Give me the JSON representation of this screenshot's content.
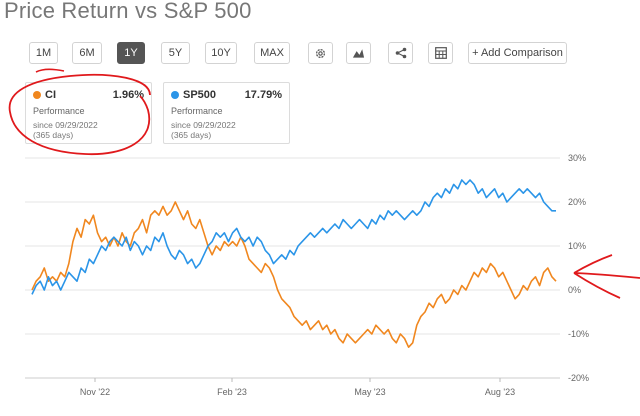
{
  "title": "Price Return vs S&P 500",
  "toolbar": {
    "ranges": [
      "1M",
      "6M",
      "1Y",
      "5Y",
      "10Y",
      "MAX"
    ],
    "active_range": "1Y",
    "icons": [
      "gear-icon",
      "mountain-chart-icon",
      "share-icon",
      "table-icon"
    ],
    "add_comparison": "+ Add Comparison"
  },
  "cards": [
    {
      "ticker": "CI",
      "value": "1.96%",
      "sub": "Performance",
      "since": "since 09/29/2022",
      "days": "(365 days)",
      "color": "#f0871f"
    },
    {
      "ticker": "SP500",
      "value": "17.79%",
      "sub": "Performance",
      "since": "since 09/29/2022",
      "days": "(365 days)",
      "color": "#2b95e8"
    }
  ],
  "chart_data": {
    "type": "line",
    "x_ticks": [
      "Nov '22",
      "Feb '23",
      "May '23",
      "Aug '23"
    ],
    "y_ticks": [
      "30%",
      "20%",
      "10%",
      "0%",
      "-10%",
      "-20%"
    ],
    "ylim": [
      -20,
      30
    ],
    "grid": "horizontal",
    "series": [
      {
        "name": "CI",
        "color": "#f0871f",
        "points": [
          [
            0,
            0
          ],
          [
            1,
            2
          ],
          [
            2,
            3
          ],
          [
            3,
            5
          ],
          [
            4,
            2
          ],
          [
            5,
            3
          ],
          [
            6,
            2
          ],
          [
            7,
            4
          ],
          [
            8,
            3
          ],
          [
            9,
            6
          ],
          [
            10,
            11
          ],
          [
            11,
            14
          ],
          [
            12,
            12
          ],
          [
            13,
            16
          ],
          [
            14,
            15
          ],
          [
            15,
            17
          ],
          [
            16,
            13
          ],
          [
            17,
            11
          ],
          [
            18,
            12
          ],
          [
            19,
            10
          ],
          [
            20,
            12
          ],
          [
            21,
            10
          ],
          [
            22,
            13
          ],
          [
            23,
            11
          ],
          [
            24,
            10
          ],
          [
            25,
            13
          ],
          [
            26,
            14
          ],
          [
            27,
            16
          ],
          [
            28,
            13
          ],
          [
            29,
            17
          ],
          [
            30,
            18
          ],
          [
            31,
            17
          ],
          [
            32,
            19
          ],
          [
            33,
            17
          ],
          [
            34,
            18
          ],
          [
            35,
            20
          ],
          [
            36,
            18
          ],
          [
            37,
            16
          ],
          [
            38,
            18
          ],
          [
            39,
            15
          ],
          [
            40,
            14
          ],
          [
            41,
            16
          ],
          [
            42,
            13
          ],
          [
            43,
            10
          ],
          [
            44,
            8
          ],
          [
            45,
            10
          ],
          [
            46,
            9
          ],
          [
            47,
            11
          ],
          [
            48,
            10
          ],
          [
            49,
            11
          ],
          [
            50,
            10
          ],
          [
            51,
            12
          ],
          [
            52,
            10
          ],
          [
            53,
            7
          ],
          [
            54,
            6
          ],
          [
            55,
            5
          ],
          [
            56,
            4
          ],
          [
            57,
            6
          ],
          [
            58,
            5
          ],
          [
            59,
            3
          ],
          [
            60,
            0
          ],
          [
            61,
            -2
          ],
          [
            62,
            -3
          ],
          [
            63,
            -4
          ],
          [
            64,
            -6
          ],
          [
            65,
            -7
          ],
          [
            66,
            -8
          ],
          [
            67,
            -7
          ],
          [
            68,
            -9
          ],
          [
            69,
            -8
          ],
          [
            70,
            -7
          ],
          [
            71,
            -9
          ],
          [
            72,
            -8
          ],
          [
            73,
            -10
          ],
          [
            74,
            -9
          ],
          [
            75,
            -11
          ],
          [
            76,
            -12
          ],
          [
            77,
            -10
          ],
          [
            78,
            -11
          ],
          [
            79,
            -12
          ],
          [
            80,
            -11
          ],
          [
            81,
            -10
          ],
          [
            82,
            -9
          ],
          [
            83,
            -10
          ],
          [
            84,
            -8
          ],
          [
            85,
            -9
          ],
          [
            86,
            -10
          ],
          [
            87,
            -9
          ],
          [
            88,
            -11
          ],
          [
            89,
            -12
          ],
          [
            90,
            -10
          ],
          [
            91,
            -11
          ],
          [
            92,
            -13
          ],
          [
            93,
            -12
          ],
          [
            94,
            -8
          ],
          [
            95,
            -6
          ],
          [
            96,
            -5
          ],
          [
            97,
            -3
          ],
          [
            98,
            -4
          ],
          [
            99,
            -2
          ],
          [
            100,
            -1
          ],
          [
            101,
            -3
          ],
          [
            102,
            -2
          ],
          [
            103,
            0
          ],
          [
            104,
            -1
          ],
          [
            105,
            1
          ],
          [
            106,
            0
          ],
          [
            107,
            2
          ],
          [
            108,
            4
          ],
          [
            109,
            3
          ],
          [
            110,
            5
          ],
          [
            111,
            4
          ],
          [
            112,
            6
          ],
          [
            113,
            5
          ],
          [
            114,
            3
          ],
          [
            115,
            4
          ],
          [
            116,
            2
          ],
          [
            117,
            0
          ],
          [
            118,
            -2
          ],
          [
            119,
            -1
          ],
          [
            120,
            1
          ],
          [
            121,
            0
          ],
          [
            122,
            2
          ],
          [
            123,
            3
          ],
          [
            124,
            1
          ],
          [
            125,
            4
          ],
          [
            126,
            5
          ],
          [
            127,
            3
          ],
          [
            128,
            2
          ]
        ]
      },
      {
        "name": "SP500",
        "color": "#2b95e8",
        "points": [
          [
            0,
            -1
          ],
          [
            1,
            1
          ],
          [
            2,
            2
          ],
          [
            3,
            0
          ],
          [
            4,
            3
          ],
          [
            5,
            1
          ],
          [
            6,
            2
          ],
          [
            7,
            0
          ],
          [
            8,
            2
          ],
          [
            9,
            4
          ],
          [
            10,
            3
          ],
          [
            11,
            2
          ],
          [
            12,
            5
          ],
          [
            13,
            4
          ],
          [
            14,
            7
          ],
          [
            15,
            6
          ],
          [
            16,
            8
          ],
          [
            17,
            10
          ],
          [
            18,
            9
          ],
          [
            19,
            11
          ],
          [
            20,
            12
          ],
          [
            21,
            11
          ],
          [
            22,
            10
          ],
          [
            23,
            12
          ],
          [
            24,
            9
          ],
          [
            25,
            11
          ],
          [
            26,
            10
          ],
          [
            27,
            8
          ],
          [
            28,
            10
          ],
          [
            29,
            9
          ],
          [
            30,
            12
          ],
          [
            31,
            11
          ],
          [
            32,
            13
          ],
          [
            33,
            10
          ],
          [
            34,
            8
          ],
          [
            35,
            7
          ],
          [
            36,
            9
          ],
          [
            37,
            8
          ],
          [
            38,
            6
          ],
          [
            39,
            7
          ],
          [
            40,
            5
          ],
          [
            41,
            6
          ],
          [
            42,
            8
          ],
          [
            43,
            10
          ],
          [
            44,
            11
          ],
          [
            45,
            13
          ],
          [
            46,
            12
          ],
          [
            47,
            13
          ],
          [
            48,
            11
          ],
          [
            49,
            13
          ],
          [
            50,
            14
          ],
          [
            51,
            12
          ],
          [
            52,
            11
          ],
          [
            53,
            12
          ],
          [
            54,
            10
          ],
          [
            55,
            12
          ],
          [
            56,
            11
          ],
          [
            57,
            9
          ],
          [
            58,
            8
          ],
          [
            59,
            6
          ],
          [
            60,
            7
          ],
          [
            61,
            8
          ],
          [
            62,
            7
          ],
          [
            63,
            9
          ],
          [
            64,
            8
          ],
          [
            65,
            10
          ],
          [
            66,
            11
          ],
          [
            67,
            12
          ],
          [
            68,
            13
          ],
          [
            69,
            12
          ],
          [
            70,
            13
          ],
          [
            71,
            14
          ],
          [
            72,
            13
          ],
          [
            73,
            14
          ],
          [
            74,
            15
          ],
          [
            75,
            14
          ],
          [
            76,
            16
          ],
          [
            77,
            15
          ],
          [
            78,
            14
          ],
          [
            79,
            15
          ],
          [
            80,
            16
          ],
          [
            81,
            15
          ],
          [
            82,
            14
          ],
          [
            83,
            16
          ],
          [
            84,
            15
          ],
          [
            85,
            17
          ],
          [
            86,
            16
          ],
          [
            87,
            18
          ],
          [
            88,
            17
          ],
          [
            89,
            18
          ],
          [
            90,
            17
          ],
          [
            91,
            16
          ],
          [
            92,
            17
          ],
          [
            93,
            18
          ],
          [
            94,
            17
          ],
          [
            95,
            18
          ],
          [
            96,
            20
          ],
          [
            97,
            19
          ],
          [
            98,
            21
          ],
          [
            99,
            22
          ],
          [
            100,
            21
          ],
          [
            101,
            23
          ],
          [
            102,
            22
          ],
          [
            103,
            24
          ],
          [
            104,
            23
          ],
          [
            105,
            25
          ],
          [
            106,
            24
          ],
          [
            107,
            25
          ],
          [
            108,
            24
          ],
          [
            109,
            22
          ],
          [
            110,
            23
          ],
          [
            111,
            21
          ],
          [
            112,
            22
          ],
          [
            113,
            23
          ],
          [
            114,
            21
          ],
          [
            115,
            22
          ],
          [
            116,
            20
          ],
          [
            117,
            21
          ],
          [
            118,
            22
          ],
          [
            119,
            23
          ],
          [
            120,
            22
          ],
          [
            121,
            23
          ],
          [
            122,
            22
          ],
          [
            123,
            21
          ],
          [
            124,
            22
          ],
          [
            125,
            20
          ],
          [
            126,
            19
          ],
          [
            127,
            18
          ],
          [
            128,
            18
          ]
        ]
      }
    ]
  }
}
